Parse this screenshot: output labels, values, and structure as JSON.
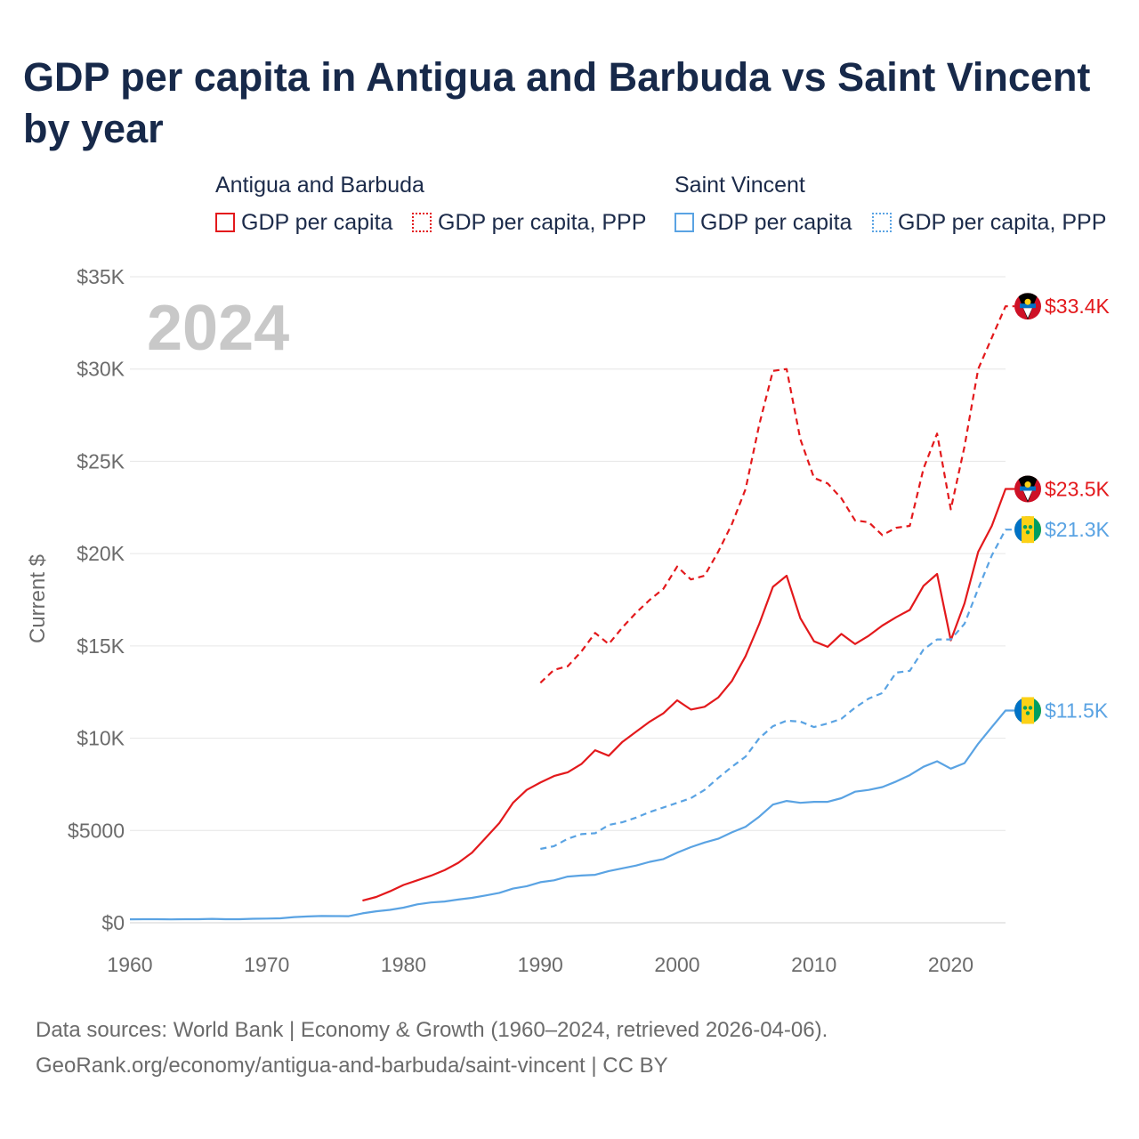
{
  "title": "GDP per capita in Antigua and Barbuda vs Saint Vincent by year",
  "legend": {
    "groups": [
      {
        "name": "Antigua and Barbuda",
        "items": [
          {
            "label": "GDP per capita",
            "style": "solid",
            "color": "#e3191c"
          },
          {
            "label": "GDP per capita, PPP",
            "style": "dotted",
            "color": "#e3191c"
          }
        ]
      },
      {
        "name": "Saint Vincent",
        "items": [
          {
            "label": "GDP per capita",
            "style": "solid",
            "color": "#5aa3e3"
          },
          {
            "label": "GDP per capita, PPP",
            "style": "dotted",
            "color": "#5aa3e3"
          }
        ]
      }
    ]
  },
  "year_watermark": "2024",
  "footer": {
    "line1": "Data sources: World Bank | Economy & Growth (1960–2024, retrieved 2026-04-06).",
    "line2": "GeoRank.org/economy/antigua-and-barbuda/saint-vincent | CC BY"
  },
  "chart_data": {
    "type": "line",
    "title": "GDP per capita in Antigua and Barbuda vs Saint Vincent by year",
    "xlabel": "",
    "ylabel": "Current $",
    "xlim": [
      1960,
      2024
    ],
    "ylim": [
      0,
      35000
    ],
    "x_ticks": [
      1960,
      1970,
      1980,
      1990,
      2000,
      2010,
      2020
    ],
    "x_tick_labels": [
      "1960",
      "1970",
      "1980",
      "1990",
      "2000",
      "2010",
      "2020"
    ],
    "y_ticks": [
      0,
      5000,
      10000,
      15000,
      20000,
      25000,
      30000,
      35000
    ],
    "y_tick_labels": [
      "$0",
      "$5000",
      "$10K",
      "$15K",
      "$20K",
      "$25K",
      "$30K",
      "$35K"
    ],
    "grid": true,
    "series": [
      {
        "name": "Antigua and Barbuda GDP per capita, PPP",
        "color": "#e3191c",
        "dash": true,
        "end_label": "$33.4K",
        "flag": "antigua",
        "points": [
          [
            1990,
            13000
          ],
          [
            1991,
            13700
          ],
          [
            1992,
            13900
          ],
          [
            1993,
            14700
          ],
          [
            1994,
            15700
          ],
          [
            1995,
            15100
          ],
          [
            1996,
            16000
          ],
          [
            1997,
            16800
          ],
          [
            1998,
            17500
          ],
          [
            1999,
            18100
          ],
          [
            2000,
            19300
          ],
          [
            2001,
            18600
          ],
          [
            2002,
            18800
          ],
          [
            2003,
            20100
          ],
          [
            2004,
            21600
          ],
          [
            2005,
            23500
          ],
          [
            2006,
            27000
          ],
          [
            2007,
            29900
          ],
          [
            2008,
            30000
          ],
          [
            2009,
            26200
          ],
          [
            2010,
            24100
          ],
          [
            2011,
            23800
          ],
          [
            2012,
            23000
          ],
          [
            2013,
            21800
          ],
          [
            2014,
            21700
          ],
          [
            2015,
            21000
          ],
          [
            2016,
            21400
          ],
          [
            2017,
            21500
          ],
          [
            2018,
            24600
          ],
          [
            2019,
            26500
          ],
          [
            2020,
            22400
          ],
          [
            2021,
            25800
          ],
          [
            2022,
            30000
          ],
          [
            2023,
            31700
          ],
          [
            2024,
            33400
          ]
        ]
      },
      {
        "name": "Antigua and Barbuda GDP per capita",
        "color": "#e3191c",
        "dash": false,
        "end_label": "$23.5K",
        "flag": "antigua",
        "points": [
          [
            1977,
            1200
          ],
          [
            1978,
            1400
          ],
          [
            1979,
            1700
          ],
          [
            1980,
            2050
          ],
          [
            1981,
            2300
          ],
          [
            1982,
            2550
          ],
          [
            1983,
            2850
          ],
          [
            1984,
            3250
          ],
          [
            1985,
            3800
          ],
          [
            1986,
            4600
          ],
          [
            1987,
            5400
          ],
          [
            1988,
            6500
          ],
          [
            1989,
            7200
          ],
          [
            1990,
            7600
          ],
          [
            1991,
            7950
          ],
          [
            1992,
            8150
          ],
          [
            1993,
            8600
          ],
          [
            1994,
            9350
          ],
          [
            1995,
            9050
          ],
          [
            1996,
            9800
          ],
          [
            1997,
            10350
          ],
          [
            1998,
            10900
          ],
          [
            1999,
            11350
          ],
          [
            2000,
            12050
          ],
          [
            2001,
            11550
          ],
          [
            2002,
            11700
          ],
          [
            2003,
            12200
          ],
          [
            2004,
            13100
          ],
          [
            2005,
            14450
          ],
          [
            2006,
            16200
          ],
          [
            2007,
            18200
          ],
          [
            2008,
            18800
          ],
          [
            2009,
            16500
          ],
          [
            2010,
            15250
          ],
          [
            2011,
            14950
          ],
          [
            2012,
            15650
          ],
          [
            2013,
            15100
          ],
          [
            2014,
            15550
          ],
          [
            2015,
            16100
          ],
          [
            2016,
            16550
          ],
          [
            2017,
            16950
          ],
          [
            2018,
            18250
          ],
          [
            2019,
            18900
          ],
          [
            2020,
            15300
          ],
          [
            2021,
            17300
          ],
          [
            2022,
            20100
          ],
          [
            2023,
            21500
          ],
          [
            2024,
            23500
          ]
        ]
      },
      {
        "name": "Saint Vincent GDP per capita, PPP",
        "color": "#5aa3e3",
        "dash": true,
        "end_label": "$21.3K",
        "flag": "stvincent",
        "points": [
          [
            1990,
            4000
          ],
          [
            1991,
            4150
          ],
          [
            1992,
            4550
          ],
          [
            1993,
            4800
          ],
          [
            1994,
            4850
          ],
          [
            1995,
            5300
          ],
          [
            1996,
            5450
          ],
          [
            1997,
            5700
          ],
          [
            1998,
            6000
          ],
          [
            1999,
            6250
          ],
          [
            2000,
            6500
          ],
          [
            2001,
            6750
          ],
          [
            2002,
            7200
          ],
          [
            2003,
            7850
          ],
          [
            2004,
            8450
          ],
          [
            2005,
            9000
          ],
          [
            2006,
            10000
          ],
          [
            2007,
            10650
          ],
          [
            2008,
            10950
          ],
          [
            2009,
            10900
          ],
          [
            2010,
            10600
          ],
          [
            2011,
            10800
          ],
          [
            2012,
            11050
          ],
          [
            2013,
            11650
          ],
          [
            2014,
            12150
          ],
          [
            2015,
            12450
          ],
          [
            2016,
            13550
          ],
          [
            2017,
            13650
          ],
          [
            2018,
            14800
          ],
          [
            2019,
            15350
          ],
          [
            2020,
            15350
          ],
          [
            2021,
            16200
          ],
          [
            2022,
            18100
          ],
          [
            2023,
            19900
          ],
          [
            2024,
            21300
          ]
        ]
      },
      {
        "name": "Saint Vincent GDP per capita",
        "color": "#5aa3e3",
        "dash": false,
        "end_label": "$11.5K",
        "flag": "stvincent",
        "points": [
          [
            1960,
            190
          ],
          [
            1961,
            195
          ],
          [
            1962,
            195
          ],
          [
            1963,
            185
          ],
          [
            1964,
            195
          ],
          [
            1965,
            195
          ],
          [
            1966,
            210
          ],
          [
            1967,
            195
          ],
          [
            1968,
            195
          ],
          [
            1969,
            215
          ],
          [
            1970,
            225
          ],
          [
            1971,
            240
          ],
          [
            1972,
            310
          ],
          [
            1973,
            340
          ],
          [
            1974,
            365
          ],
          [
            1975,
            360
          ],
          [
            1976,
            355
          ],
          [
            1977,
            510
          ],
          [
            1978,
            620
          ],
          [
            1979,
            700
          ],
          [
            1980,
            820
          ],
          [
            1981,
            1000
          ],
          [
            1982,
            1100
          ],
          [
            1983,
            1150
          ],
          [
            1984,
            1260
          ],
          [
            1985,
            1350
          ],
          [
            1986,
            1480
          ],
          [
            1987,
            1620
          ],
          [
            1988,
            1850
          ],
          [
            1989,
            1980
          ],
          [
            1990,
            2200
          ],
          [
            1991,
            2300
          ],
          [
            1992,
            2500
          ],
          [
            1993,
            2560
          ],
          [
            1994,
            2600
          ],
          [
            1995,
            2800
          ],
          [
            1996,
            2950
          ],
          [
            1997,
            3100
          ],
          [
            1998,
            3300
          ],
          [
            1999,
            3450
          ],
          [
            2000,
            3800
          ],
          [
            2001,
            4100
          ],
          [
            2002,
            4350
          ],
          [
            2003,
            4550
          ],
          [
            2004,
            4900
          ],
          [
            2005,
            5200
          ],
          [
            2006,
            5750
          ],
          [
            2007,
            6400
          ],
          [
            2008,
            6600
          ],
          [
            2009,
            6500
          ],
          [
            2010,
            6550
          ],
          [
            2011,
            6550
          ],
          [
            2012,
            6750
          ],
          [
            2013,
            7100
          ],
          [
            2014,
            7200
          ],
          [
            2015,
            7350
          ],
          [
            2016,
            7650
          ],
          [
            2017,
            8000
          ],
          [
            2018,
            8450
          ],
          [
            2019,
            8750
          ],
          [
            2020,
            8350
          ],
          [
            2021,
            8650
          ],
          [
            2022,
            9700
          ],
          [
            2023,
            10600
          ],
          [
            2024,
            11500
          ]
        ]
      }
    ]
  }
}
